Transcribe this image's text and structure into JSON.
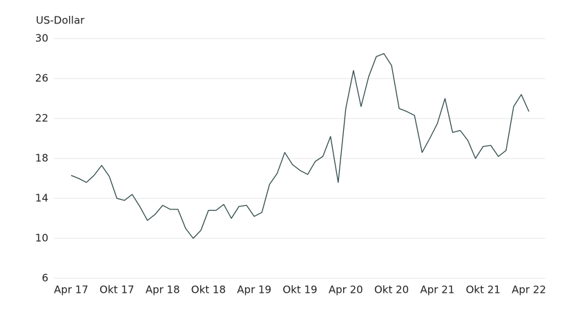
{
  "chart_data": {
    "type": "line",
    "y_label": "US-Dollar",
    "x": [
      "2017-04",
      "2017-05",
      "2017-06",
      "2017-07",
      "2017-08",
      "2017-09",
      "2017-10",
      "2017-11",
      "2017-12",
      "2018-01",
      "2018-02",
      "2018-03",
      "2018-04",
      "2018-05",
      "2018-06",
      "2018-07",
      "2018-08",
      "2018-09",
      "2018-10",
      "2018-11",
      "2018-12",
      "2019-01",
      "2019-02",
      "2019-03",
      "2019-04",
      "2019-05",
      "2019-06",
      "2019-07",
      "2019-08",
      "2019-09",
      "2019-10",
      "2019-11",
      "2019-12",
      "2020-01",
      "2020-02",
      "2020-03",
      "2020-04",
      "2020-05",
      "2020-06",
      "2020-07",
      "2020-08",
      "2020-09",
      "2020-10",
      "2020-11",
      "2020-12",
      "2021-01",
      "2021-02",
      "2021-03",
      "2021-04",
      "2021-05",
      "2021-06",
      "2021-07",
      "2021-08",
      "2021-09",
      "2021-10",
      "2021-11",
      "2021-12",
      "2022-01",
      "2022-02",
      "2022-03",
      "2022-04"
    ],
    "series": [
      {
        "color": "#2f4a4a",
        "values": [
          16.3,
          16.0,
          15.6,
          16.3,
          17.3,
          16.2,
          14.0,
          13.8,
          14.4,
          13.2,
          11.8,
          12.4,
          13.3,
          12.9,
          12.9,
          11.0,
          10.0,
          10.8,
          12.8,
          12.8,
          13.4,
          12.0,
          13.2,
          13.3,
          12.2,
          12.6,
          15.4,
          16.5,
          18.6,
          17.4,
          16.8,
          16.4,
          17.7,
          18.2,
          20.2,
          15.6,
          23.0,
          26.8,
          23.2,
          26.2,
          28.2,
          28.5,
          27.3,
          23.0,
          22.7,
          22.3,
          18.6,
          20.0,
          21.5,
          24.0,
          20.6,
          20.8,
          19.8,
          18.0,
          19.2,
          19.3,
          18.2,
          18.8,
          23.2,
          24.4,
          22.7
        ]
      }
    ],
    "ylim": [
      6,
      30
    ],
    "yticks": [
      6,
      10,
      14,
      18,
      22,
      26,
      30
    ],
    "grid": true,
    "xticks": [
      {
        "value": "2017-04",
        "label": "Apr 17"
      },
      {
        "value": "2017-10",
        "label": "Okt 17"
      },
      {
        "value": "2018-04",
        "label": "Apr 18"
      },
      {
        "value": "2018-10",
        "label": "Okt 18"
      },
      {
        "value": "2019-04",
        "label": "Apr 19"
      },
      {
        "value": "2019-10",
        "label": "Okt 19"
      },
      {
        "value": "2020-04",
        "label": "Apr 20"
      },
      {
        "value": "2020-10",
        "label": "Okt 20"
      },
      {
        "value": "2021-04",
        "label": "Apr 21"
      },
      {
        "value": "2021-10",
        "label": "Okt 21"
      },
      {
        "value": "2022-04",
        "label": "Apr 22"
      }
    ]
  }
}
